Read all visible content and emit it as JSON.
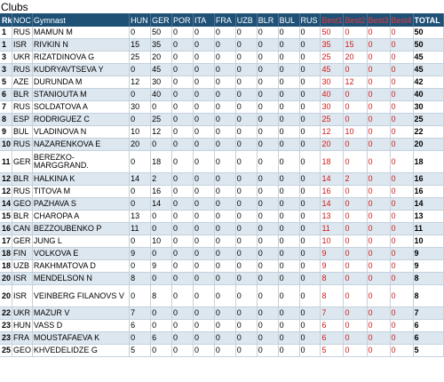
{
  "title": "Clubs",
  "headers": [
    "Rk",
    "NOC",
    "Gymnast",
    "HUN",
    "GER",
    "POR",
    "ITA",
    "FRA",
    "UZB",
    "BLR",
    "BUL",
    "RUS",
    "Best1",
    "Best2",
    "Best3",
    "Best4",
    "TOTAL"
  ],
  "rows": [
    [
      "1",
      "RUS",
      "MAMUN M",
      "0",
      "50",
      "0",
      "0",
      "0",
      "0",
      "0",
      "0",
      "0",
      "50",
      "0",
      "0",
      "0",
      "50"
    ],
    [
      "1",
      "ISR",
      "RIVKIN N",
      "15",
      "35",
      "0",
      "0",
      "0",
      "0",
      "0",
      "0",
      "0",
      "35",
      "15",
      "0",
      "0",
      "50"
    ],
    [
      "3",
      "UKR",
      "RIZATDINOVA G",
      "25",
      "20",
      "0",
      "0",
      "0",
      "0",
      "0",
      "0",
      "0",
      "25",
      "20",
      "0",
      "0",
      "45"
    ],
    [
      "3",
      "RUS",
      "KUDRYAVTSEVA Y",
      "0",
      "45",
      "0",
      "0",
      "0",
      "0",
      "0",
      "0",
      "0",
      "45",
      "0",
      "0",
      "0",
      "45"
    ],
    [
      "5",
      "AZE",
      "DURUNDA M",
      "12",
      "30",
      "0",
      "0",
      "0",
      "0",
      "0",
      "0",
      "0",
      "30",
      "12",
      "0",
      "0",
      "42"
    ],
    [
      "6",
      "BLR",
      "STANIOUTA M",
      "0",
      "40",
      "0",
      "0",
      "0",
      "0",
      "0",
      "0",
      "0",
      "40",
      "0",
      "0",
      "0",
      "40"
    ],
    [
      "7",
      "RUS",
      "SOLDATOVA A",
      "30",
      "0",
      "0",
      "0",
      "0",
      "0",
      "0",
      "0",
      "0",
      "30",
      "0",
      "0",
      "0",
      "30"
    ],
    [
      "8",
      "ESP",
      "RODRIGUEZ C",
      "0",
      "25",
      "0",
      "0",
      "0",
      "0",
      "0",
      "0",
      "0",
      "25",
      "0",
      "0",
      "0",
      "25"
    ],
    [
      "9",
      "BUL",
      "VLADINOVA N",
      "10",
      "12",
      "0",
      "0",
      "0",
      "0",
      "0",
      "0",
      "0",
      "12",
      "10",
      "0",
      "0",
      "22"
    ],
    [
      "10",
      "RUS",
      "NAZARENKOVA E",
      "20",
      "0",
      "0",
      "0",
      "0",
      "0",
      "0",
      "0",
      "0",
      "20",
      "0",
      "0",
      "0",
      "20"
    ],
    [
      "11",
      "GER",
      "BEREZKO-MARGGRAND.",
      "0",
      "18",
      "0",
      "0",
      "0",
      "0",
      "0",
      "0",
      "0",
      "18",
      "0",
      "0",
      "0",
      "18"
    ],
    [
      "12",
      "BLR",
      "HALKINA K",
      "14",
      "2",
      "0",
      "0",
      "0",
      "0",
      "0",
      "0",
      "0",
      "14",
      "2",
      "0",
      "0",
      "16"
    ],
    [
      "12",
      "RUS",
      "TITOVA M",
      "0",
      "16",
      "0",
      "0",
      "0",
      "0",
      "0",
      "0",
      "0",
      "16",
      "0",
      "0",
      "0",
      "16"
    ],
    [
      "14",
      "GEO",
      "PAZHAVA S",
      "0",
      "14",
      "0",
      "0",
      "0",
      "0",
      "0",
      "0",
      "0",
      "14",
      "0",
      "0",
      "0",
      "14"
    ],
    [
      "15",
      "BLR",
      "CHAROPA A",
      "13",
      "0",
      "0",
      "0",
      "0",
      "0",
      "0",
      "0",
      "0",
      "13",
      "0",
      "0",
      "0",
      "13"
    ],
    [
      "16",
      "CAN",
      "BEZZOUBENKO P",
      "11",
      "0",
      "0",
      "0",
      "0",
      "0",
      "0",
      "0",
      "0",
      "11",
      "0",
      "0",
      "0",
      "11"
    ],
    [
      "17",
      "GER",
      "JUNG L",
      "0",
      "10",
      "0",
      "0",
      "0",
      "0",
      "0",
      "0",
      "0",
      "10",
      "0",
      "0",
      "0",
      "10"
    ],
    [
      "18",
      "FIN",
      "VOLKOVA E",
      "9",
      "0",
      "0",
      "0",
      "0",
      "0",
      "0",
      "0",
      "0",
      "9",
      "0",
      "0",
      "0",
      "9"
    ],
    [
      "18",
      "UZB",
      "RAKHMATOVA D",
      "0",
      "9",
      "0",
      "0",
      "0",
      "0",
      "0",
      "0",
      "0",
      "9",
      "0",
      "0",
      "0",
      "9"
    ],
    [
      "20",
      "ISR",
      "MENDELSON N",
      "8",
      "0",
      "0",
      "0",
      "0",
      "0",
      "0",
      "0",
      "0",
      "8",
      "0",
      "0",
      "0",
      "8"
    ],
    [
      "20",
      "ISR",
      "VEINBERG FILANOVS V",
      "0",
      "8",
      "0",
      "0",
      "0",
      "0",
      "0",
      "0",
      "0",
      "8",
      "0",
      "0",
      "0",
      "8"
    ],
    [
      "22",
      "UKR",
      "MAZUR V",
      "7",
      "0",
      "0",
      "0",
      "0",
      "0",
      "0",
      "0",
      "0",
      "7",
      "0",
      "0",
      "0",
      "7"
    ],
    [
      "23",
      "HUN",
      "VASS D",
      "6",
      "0",
      "0",
      "0",
      "0",
      "0",
      "0",
      "0",
      "0",
      "6",
      "0",
      "0",
      "0",
      "6"
    ],
    [
      "23",
      "FRA",
      "MOUSTAFAEVA K",
      "0",
      "6",
      "0",
      "0",
      "0",
      "0",
      "0",
      "0",
      "0",
      "6",
      "0",
      "0",
      "0",
      "6"
    ],
    [
      "25",
      "GEO",
      "KHVEDELIDZE G",
      "5",
      "0",
      "0",
      "0",
      "0",
      "0",
      "0",
      "0",
      "0",
      "5",
      "0",
      "0",
      "0",
      "5"
    ]
  ],
  "colors": {
    "header_bg": "#1f5177",
    "header_text": "#ffffff",
    "best_text": "#d11a1a",
    "row_alt_bg": "#dde7ef"
  }
}
